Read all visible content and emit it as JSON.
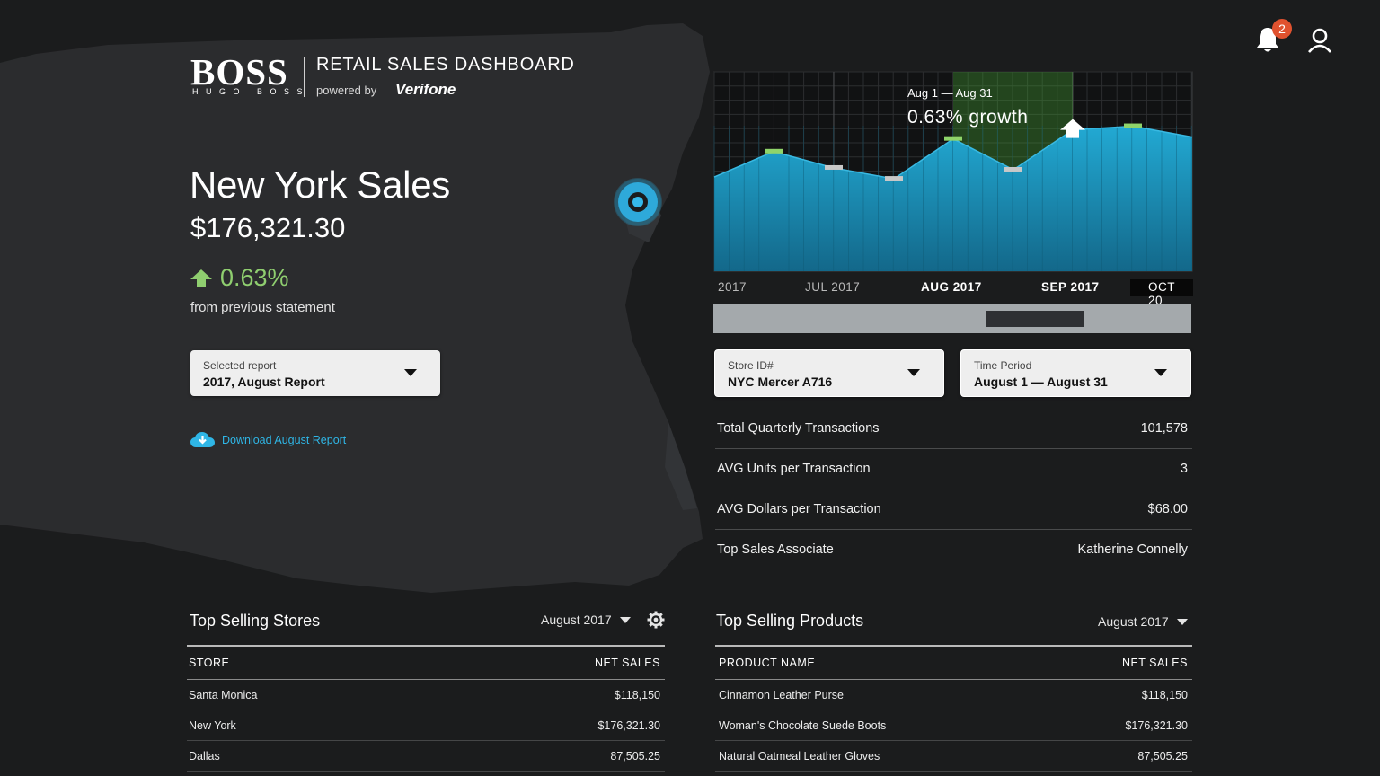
{
  "brand": {
    "logo": "BOSS",
    "logo_sub": "HUGO BOSS",
    "title": "RETAIL SALES DASHBOARD",
    "powered_by": "powered by",
    "partner": "Verifone"
  },
  "header": {
    "notification_count": "2"
  },
  "summary": {
    "city_title": "New York Sales",
    "amount": "$176,321.30",
    "growth": "0.63%",
    "growth_note": "from previous statement"
  },
  "report_select": {
    "label": "Selected report",
    "value": "2017, August Report"
  },
  "download": {
    "label": "Download August Report"
  },
  "chart_data": {
    "type": "area",
    "x_ticks": [
      "2017",
      "JUL 2017",
      "AUG 2017",
      "SEP 2017",
      "OCT 20"
    ],
    "values": [
      5.2,
      6.6,
      5.7,
      5.1,
      7.3,
      5.6,
      7.8,
      8.0,
      7.4
    ],
    "ylim": [
      0,
      11
    ],
    "highlight": {
      "range_label": "Aug 1 — Aug 31",
      "headline": "0.63% growth"
    },
    "grid": true,
    "colors": {
      "fill": "#1fa3cc",
      "line": "#39b9e2",
      "marker_up": "#8fd46a",
      "marker_down": "#c8c8c8",
      "highlight": "#46a534"
    }
  },
  "store_select": {
    "label": "Store ID#",
    "value": "NYC Mercer A716"
  },
  "time_select": {
    "label": "Time Period",
    "value": "August 1 — August 31"
  },
  "stats": [
    {
      "label": "Total Quarterly Transactions",
      "value": "101,578"
    },
    {
      "label": "AVG Units per Transaction",
      "value": "3"
    },
    {
      "label": "AVG Dollars per Transaction",
      "value": "$68.00"
    },
    {
      "label": "Top Sales Associate",
      "value": "Katherine Connelly"
    }
  ],
  "stores_table": {
    "title": "Top Selling Stores",
    "period": "August 2017",
    "col_name": "STORE",
    "col_sales": "NET SALES",
    "rows": [
      {
        "name": "Santa Monica",
        "sales": "$118,150"
      },
      {
        "name": "New York",
        "sales": "$176,321.30"
      },
      {
        "name": "Dallas",
        "sales": "87,505.25"
      }
    ]
  },
  "products_table": {
    "title": "Top Selling Products",
    "period": "August 2017",
    "col_name": "PRODUCT NAME",
    "col_sales": "NET SALES",
    "rows": [
      {
        "name": "Cinnamon Leather Purse",
        "sales": "$118,150"
      },
      {
        "name": "Woman's Chocolate Suede Boots",
        "sales": "$176,321.30"
      },
      {
        "name": "Natural Oatmeal Leather Gloves",
        "sales": "87,505.25"
      }
    ]
  },
  "colors": {
    "accent": "#2fb6e6",
    "positive": "#8fce6f",
    "badge": "#e0522f"
  }
}
